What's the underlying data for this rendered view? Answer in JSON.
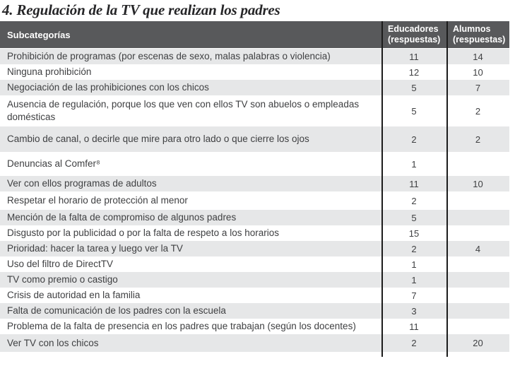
{
  "title": "4. Regulación de la TV que realizan los padres",
  "colors": {
    "header_bg": "#58595b",
    "header_text": "#ffffff",
    "row_stripe": "#e6e7e8",
    "grid_line": "#1c1c1c",
    "body_text": "#3f4042"
  },
  "table": {
    "columns": {
      "subcategorias": {
        "label": "Subcategorías"
      },
      "educadores": {
        "label": "Educadores",
        "sublabel": "(respuestas)"
      },
      "alumnos": {
        "label": "Alumnos",
        "sublabel": "(respuestas)"
      }
    },
    "rows": [
      {
        "subcategoria": "Prohibición de programas (por escenas de sexo, malas palabras o violencia)",
        "educadores": "11",
        "alumnos": "14"
      },
      {
        "subcategoria": "Ninguna prohibición",
        "educadores": "12",
        "alumnos": "10"
      },
      {
        "subcategoria": "Negociación de las prohibiciones con los chicos",
        "educadores": "5",
        "alumnos": "7"
      },
      {
        "subcategoria": "Ausencia de regulación, porque los que ven con ellos TV son abuelos o empleadas domésticas",
        "educadores": "5",
        "alumnos": "2"
      },
      {
        "subcategoria": "Cambio de canal, o decirle que mire para otro lado o que cierre los ojos",
        "educadores": "2",
        "alumnos": "2"
      },
      {
        "subcategoria": "Denuncias al Comfer⁸",
        "educadores": "1",
        "alumnos": ""
      },
      {
        "subcategoria": "Ver con ellos programas de adultos",
        "educadores": "11",
        "alumnos": "10"
      },
      {
        "subcategoria": "Respetar el horario de protección al menor",
        "educadores": "2",
        "alumnos": ""
      },
      {
        "subcategoria": "Mención de la falta de compromiso de algunos padres",
        "educadores": "5",
        "alumnos": ""
      },
      {
        "subcategoria": "Disgusto por la publicidad o por la falta de respeto a los horarios",
        "educadores": "15",
        "alumnos": ""
      },
      {
        "subcategoria": "Prioridad: hacer la tarea y luego ver la TV",
        "educadores": "2",
        "alumnos": "4"
      },
      {
        "subcategoria": "Uso del filtro de DirectTV",
        "educadores": "1",
        "alumnos": ""
      },
      {
        "subcategoria": "TV como premio o castigo",
        "educadores": "1",
        "alumnos": ""
      },
      {
        "subcategoria": "Crisis de autoridad en la familia",
        "educadores": "7",
        "alumnos": ""
      },
      {
        "subcategoria": "Falta de comunicación de los padres con la escuela",
        "educadores": "3",
        "alumnos": ""
      },
      {
        "subcategoria": "Problema de la falta de presencia en los padres que trabajan (según los docentes)",
        "educadores": "11",
        "alumnos": ""
      },
      {
        "subcategoria": "Ver TV con los chicos",
        "educadores": "2",
        "alumnos": "20"
      }
    ]
  }
}
